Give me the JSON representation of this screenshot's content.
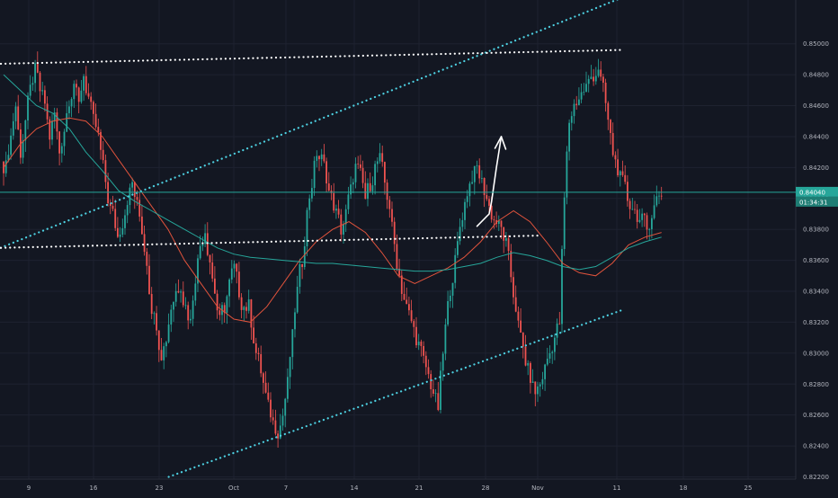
{
  "chart_data": {
    "type": "candlestick",
    "title": "",
    "instrument_pair_value": "",
    "last_price": "0.84040",
    "countdown": "01:34:31",
    "y_axis": {
      "min": 0.822,
      "max": 0.851,
      "ticks": [
        "0.85000",
        "0.84800",
        "0.84600",
        "0.84400",
        "0.84200",
        "0.84000",
        "0.83800",
        "0.83600",
        "0.83400",
        "0.83200",
        "0.83000",
        "0.82800",
        "0.82600",
        "0.82400",
        "0.82200"
      ]
    },
    "x_axis": {
      "tick_labels": [
        "9",
        "16",
        "23",
        "Oct",
        "7",
        "14",
        "21",
        "28",
        "Nov",
        "11",
        "18",
        "25"
      ]
    },
    "closes": [
      0.842,
      0.844,
      0.846,
      0.843,
      0.845,
      0.847,
      0.8482,
      0.847,
      0.8462,
      0.844,
      0.8455,
      0.843,
      0.8445,
      0.8465,
      0.8475,
      0.846,
      0.848,
      0.8465,
      0.845,
      0.844,
      0.842,
      0.84,
      0.839,
      0.8375,
      0.8385,
      0.84,
      0.841,
      0.8395,
      0.838,
      0.836,
      0.833,
      0.832,
      0.83,
      0.831,
      0.833,
      0.834,
      0.8345,
      0.833,
      0.832,
      0.835,
      0.837,
      0.838,
      0.836,
      0.834,
      0.832,
      0.833,
      0.8345,
      0.8355,
      0.834,
      0.833,
      0.833,
      0.831,
      0.8295,
      0.828,
      0.8265,
      0.8255,
      0.825,
      0.826,
      0.828,
      0.831,
      0.834,
      0.836,
      0.839,
      0.841,
      0.843,
      0.8425,
      0.8415,
      0.84,
      0.839,
      0.838,
      0.839,
      0.8405,
      0.842,
      0.8415,
      0.84,
      0.841,
      0.842,
      0.8425,
      0.841,
      0.8395,
      0.837,
      0.835,
      0.8335,
      0.8325,
      0.8315,
      0.8305,
      0.8295,
      0.8285,
      0.8275,
      0.8265,
      0.83,
      0.833,
      0.835,
      0.837,
      0.839,
      0.8405,
      0.8415,
      0.842,
      0.841,
      0.84,
      0.839,
      0.8385,
      0.838,
      0.837,
      0.835,
      0.833,
      0.831,
      0.8295,
      0.8285,
      0.8275,
      0.828,
      0.829,
      0.83,
      0.831,
      0.832,
      0.84,
      0.845,
      0.846,
      0.8465,
      0.847,
      0.8475,
      0.848,
      0.8485,
      0.847,
      0.845,
      0.843,
      0.842,
      0.841,
      0.84,
      0.8395,
      0.839,
      0.8385,
      0.838,
      0.839,
      0.84,
      0.8404
    ],
    "moving_averages": [
      {
        "color": "#E0533C",
        "values": [
          0.842,
          0.8435,
          0.8445,
          0.845,
          0.8452,
          0.845,
          0.844,
          0.8425,
          0.841,
          0.8395,
          0.838,
          0.836,
          0.8345,
          0.833,
          0.8322,
          0.832,
          0.833,
          0.8345,
          0.836,
          0.8372,
          0.838,
          0.8385,
          0.8378,
          0.8365,
          0.835,
          0.8345,
          0.835,
          0.8355,
          0.8362,
          0.8372,
          0.8385,
          0.8392,
          0.8385,
          0.8372,
          0.8358,
          0.8352,
          0.835,
          0.8358,
          0.837,
          0.8375,
          0.8378
        ]
      },
      {
        "color": "#26A69A",
        "values": [
          0.848,
          0.847,
          0.846,
          0.8455,
          0.8445,
          0.843,
          0.8418,
          0.8405,
          0.8398,
          0.8392,
          0.8386,
          0.838,
          0.8374,
          0.8368,
          0.8364,
          0.8362,
          0.8361,
          0.836,
          0.8359,
          0.8358,
          0.8358,
          0.8357,
          0.8356,
          0.8355,
          0.8354,
          0.8353,
          0.8353,
          0.8354,
          0.8356,
          0.8358,
          0.8362,
          0.8365,
          0.8363,
          0.836,
          0.8356,
          0.8354,
          0.8356,
          0.8362,
          0.8368,
          0.8372,
          0.8375
        ]
      }
    ],
    "trendlines": [
      {
        "style": "dotted",
        "color": "#4DD0E1",
        "from": {
          "bar": -3,
          "price": 0.8367
        },
        "to": {
          "bar": 255,
          "price": 0.853
        }
      },
      {
        "style": "dotted",
        "color": "#4DD0E1",
        "from": {
          "bar": 68,
          "price": 0.822
        },
        "to": {
          "bar": 255,
          "price": 0.8328
        }
      },
      {
        "style": "dotted",
        "color": "#FFFFFF",
        "from": {
          "bar": -3,
          "price": 0.8487
        },
        "to": {
          "bar": 255,
          "price": 0.8496
        }
      },
      {
        "style": "dotted",
        "color": "#FFFFFF",
        "from": {
          "bar": -3,
          "price": 0.8368
        },
        "to": {
          "bar": 221,
          "price": 0.8376
        }
      }
    ],
    "hand_drawn_arrow": {
      "color": "#FFFFFF",
      "points": [
        [
          0.8382,
          195
        ],
        [
          0.839,
          200
        ],
        [
          0.8398,
          201
        ],
        [
          0.842,
          203
        ],
        [
          0.844,
          205
        ]
      ]
    },
    "colors": {
      "up": "#26A69A",
      "down": "#EF5350",
      "background": "#131722",
      "grid": "#1E2230",
      "axis_text": "#B2B5BE",
      "price_line": "#26A69A"
    }
  }
}
